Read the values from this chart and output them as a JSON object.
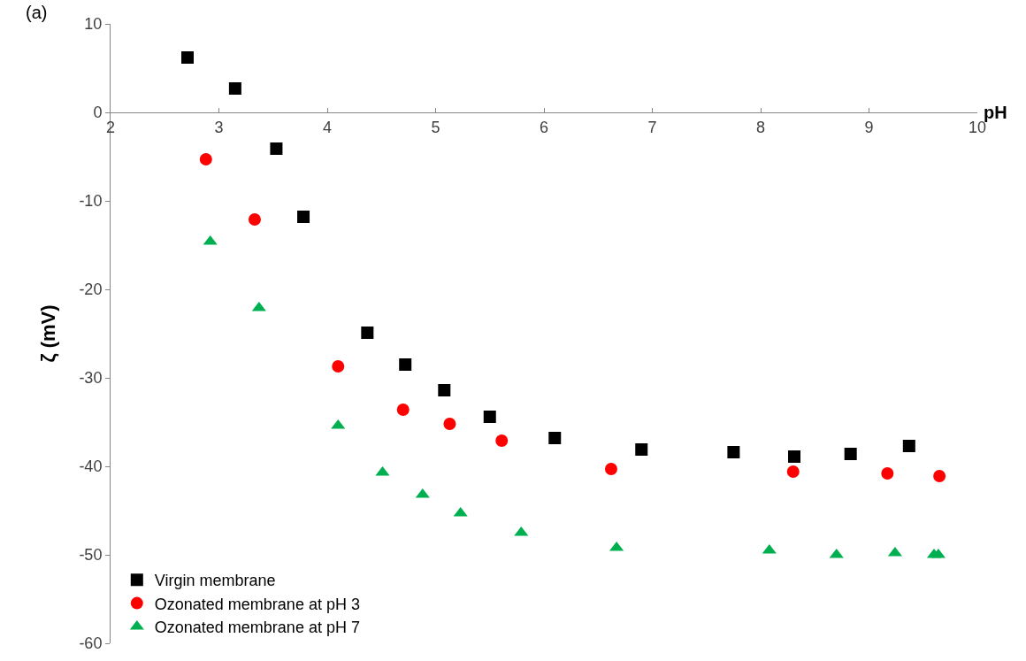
{
  "chart_data": {
    "type": "scatter",
    "ylabel": "ζ (mV)",
    "xlabel": "pH",
    "annotations": [
      "(a)"
    ],
    "xlim": [
      2,
      10
    ],
    "xticks": [
      2,
      3,
      4,
      5,
      6,
      7,
      8,
      9,
      10
    ],
    "ylim": [
      -60,
      10
    ],
    "yticks": [
      -60,
      -50,
      -40,
      -30,
      -20,
      -10,
      0,
      10
    ],
    "grid": false,
    "legend": "bottom left",
    "series": [
      {
        "name": "Virgin membrane",
        "color": "#000000",
        "marker": "square",
        "x": [
          2.71,
          3.15,
          3.53,
          3.78,
          4.37,
          4.72,
          5.08,
          5.5,
          6.1,
          6.9,
          7.75,
          8.31,
          8.83,
          9.37
        ],
        "values": [
          6.2,
          2.7,
          -4.1,
          -11.8,
          -24.9,
          -28.5,
          -31.4,
          -34.4,
          -36.8,
          -38.1,
          -38.4,
          -38.9,
          -38.6,
          -37.7
        ]
      },
      {
        "name": "Ozonated membrane at pH 3",
        "color": "#ff0000",
        "marker": "circle",
        "x": [
          2.88,
          3.33,
          4.1,
          4.7,
          5.13,
          5.61,
          6.62,
          8.3,
          9.17,
          9.65
        ],
        "values": [
          -5.3,
          -12.1,
          -28.7,
          -33.6,
          -35.2,
          -37.1,
          -40.3,
          -40.6,
          -40.8,
          -41.1
        ]
      },
      {
        "name": "Ozonated membrane at pH 7",
        "color": "#00b050",
        "marker": "triangle",
        "x": [
          2.92,
          3.37,
          4.1,
          4.51,
          4.88,
          5.23,
          5.79,
          6.67,
          8.08,
          8.7,
          9.24,
          9.6,
          9.64
        ],
        "values": [
          -14.6,
          -22.1,
          -35.4,
          -40.7,
          -43.2,
          -45.3,
          -47.5,
          -49.2,
          -49.5,
          -50.0,
          -49.8,
          -50.0,
          -50.0
        ]
      }
    ]
  }
}
